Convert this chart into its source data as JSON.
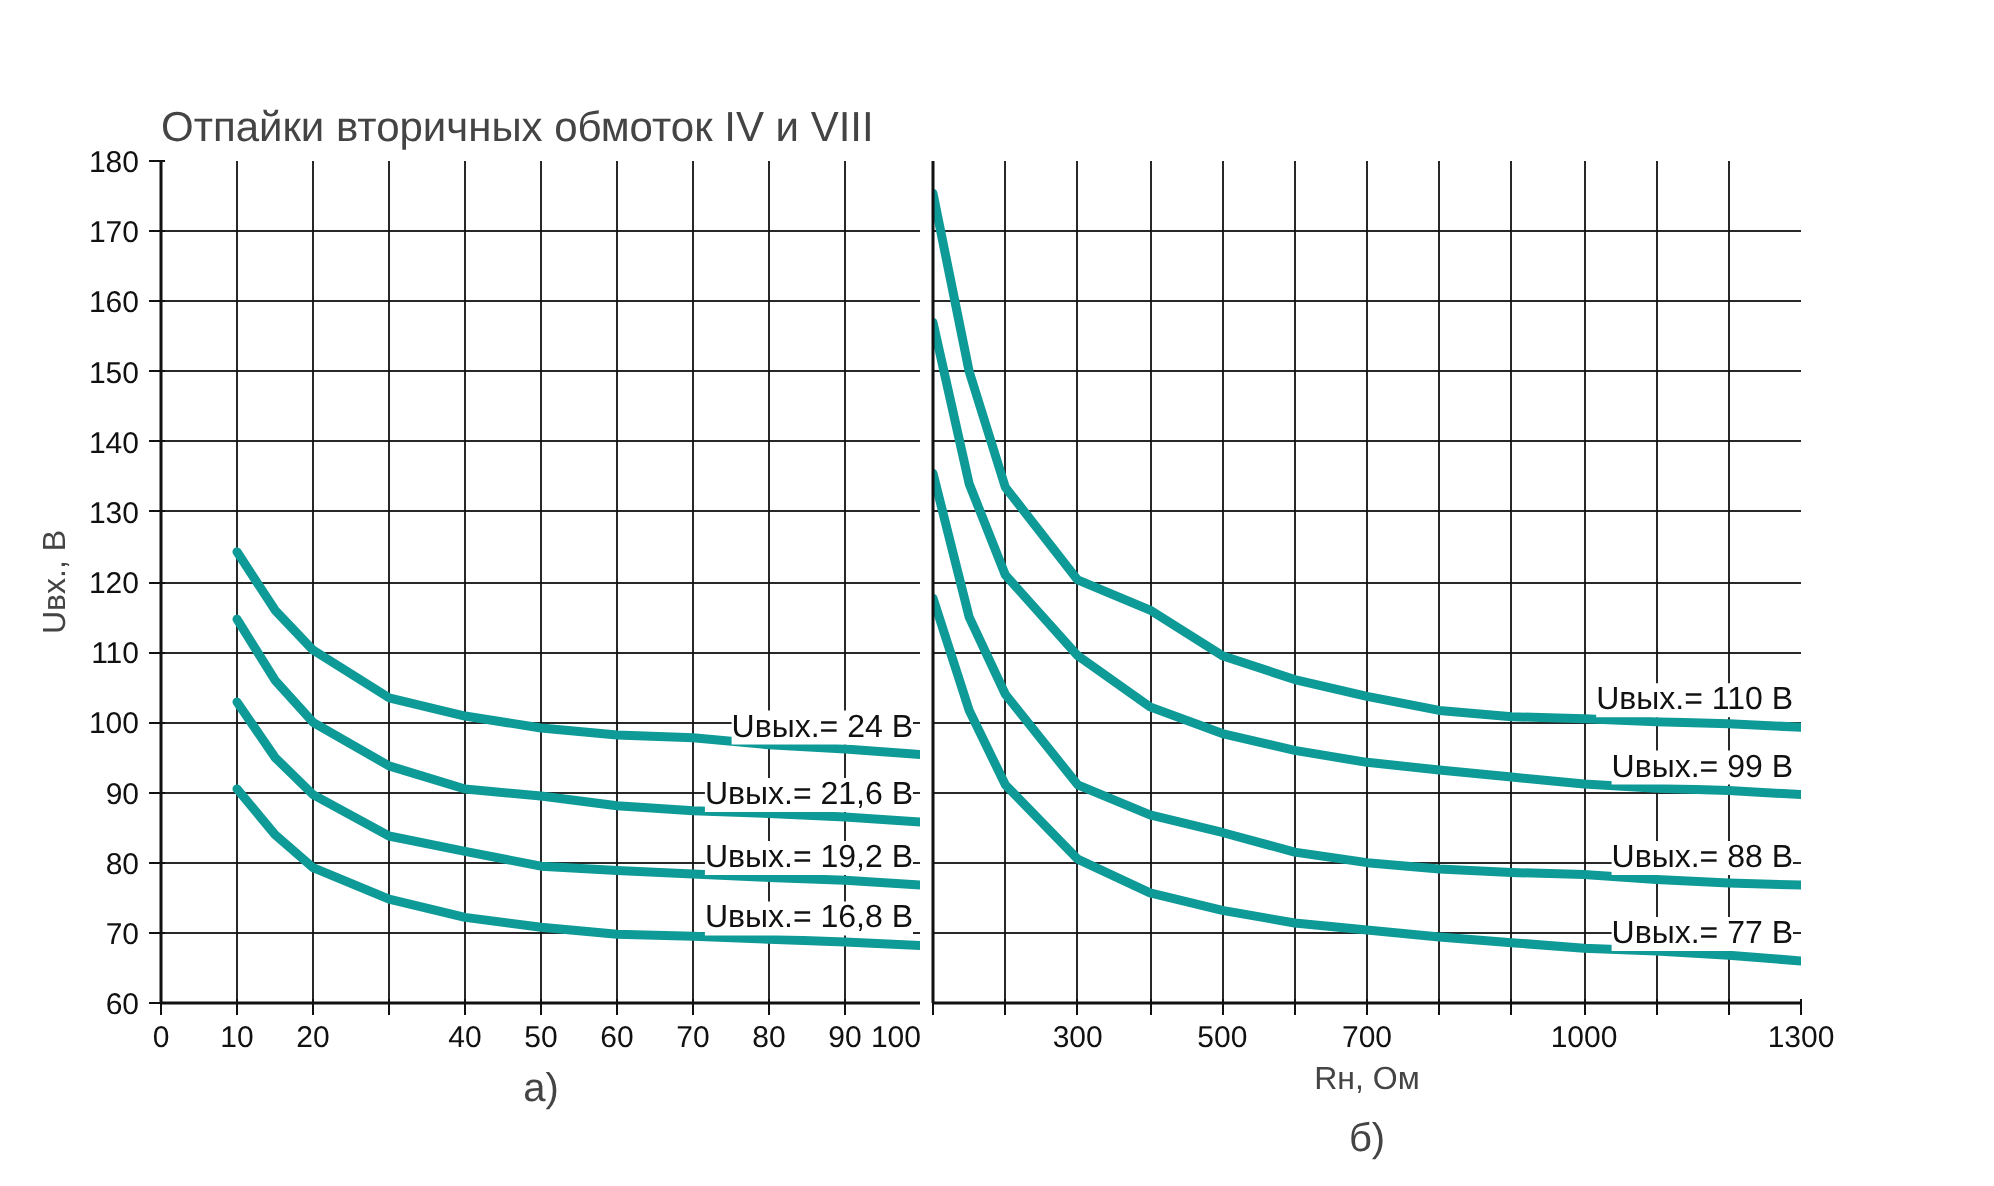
{
  "chart_data": [
    {
      "type": "line",
      "title": "Отпайки вторичных обмоток IV и VIII",
      "subtitle": "а)",
      "ylabel": "Uвх., В",
      "x": [
        10,
        15,
        20,
        30,
        40,
        50,
        60,
        70,
        80,
        90,
        100
      ],
      "xlim": [
        0,
        100
      ],
      "xticks": [
        0,
        10,
        20,
        {
          "value": 30,
          "label": null
        },
        40,
        50,
        60,
        70,
        80,
        90,
        100
      ],
      "ylim": [
        60,
        180
      ],
      "yticks": [
        60,
        70,
        80,
        90,
        100,
        110,
        120,
        130,
        140,
        150,
        160,
        170,
        180
      ],
      "grid": true,
      "line_style": "solid",
      "series": [
        {
          "name": "Uвых.= 24 В",
          "color": "#0e9a96",
          "values": [
            124.3,
            116,
            110.3,
            103.5,
            100.9,
            99.2,
            98.2,
            97.8,
            96.8,
            96.2,
            95.4
          ]
        },
        {
          "name": "Uвых.= 21,6 В",
          "color": "#0e9a96",
          "values": [
            114.7,
            106,
            100,
            93.8,
            90.5,
            89.5,
            88.1,
            87.4,
            87,
            86.5,
            85.8
          ]
        },
        {
          "name": "Uвых.= 19,2 В",
          "color": "#0e9a96",
          "values": [
            102.9,
            95,
            89.7,
            83.8,
            81.6,
            79.5,
            78.9,
            78.4,
            77.9,
            77.5,
            76.8
          ]
        },
        {
          "name": "Uвых.= 16,8 В",
          "color": "#0e9a96",
          "values": [
            90.5,
            84,
            79.3,
            74.8,
            72.2,
            70.8,
            69.8,
            69.5,
            69.1,
            68.7,
            68.2
          ]
        }
      ]
    },
    {
      "type": "line",
      "subtitle": "б)",
      "xlabel": "Rн, Ом",
      "x": [
        100,
        150,
        200,
        300,
        400,
        500,
        600,
        700,
        800,
        900,
        1000,
        1100,
        1200,
        1300
      ],
      "xlim": [
        100,
        1300
      ],
      "xticks": [
        {
          "value": 100,
          "label": null
        },
        {
          "value": 200,
          "label": null
        },
        300,
        {
          "value": 400,
          "label": null
        },
        500,
        {
          "value": 600,
          "label": null
        },
        700,
        {
          "value": 800,
          "label": null
        },
        {
          "value": 900,
          "label": null
        },
        1000,
        {
          "value": 1100,
          "label": null
        },
        {
          "value": 1200,
          "label": null
        },
        1300
      ],
      "ylim": [
        60,
        180
      ],
      "yticks": [
        60,
        70,
        80,
        90,
        100,
        110,
        120,
        130,
        140,
        150,
        160,
        170,
        180
      ],
      "tick_labels": "x",
      "grid": true,
      "line_style": "solid",
      "series": [
        {
          "name": "Uвых.= 110 В",
          "color": "#0e9a96",
          "values": [
            175.4,
            150,
            133.5,
            120.3,
            116,
            109.5,
            106.1,
            103.7,
            101.7,
            100.8,
            100.5,
            100.1,
            99.8,
            99.3
          ]
        },
        {
          "name": "Uвых.= 99 В",
          "color": "#0e9a96",
          "values": [
            157,
            134,
            121,
            109.5,
            102.2,
            98.4,
            96,
            94.3,
            93.2,
            92.2,
            91.2,
            90.6,
            90.3,
            89.7
          ]
        },
        {
          "name": "Uвых.= 88 В",
          "color": "#0e9a96",
          "values": [
            135.5,
            115,
            104,
            91.1,
            86.8,
            84.3,
            81.5,
            80,
            79.1,
            78.6,
            78.3,
            77.6,
            77.1,
            76.8
          ]
        },
        {
          "name": "Uвых.= 77 В",
          "color": "#0e9a96",
          "values": [
            117.7,
            101.7,
            91.1,
            80.5,
            75.7,
            73.2,
            71.4,
            70.4,
            69.4,
            68.6,
            67.8,
            67.4,
            66.8,
            66
          ]
        }
      ]
    }
  ]
}
